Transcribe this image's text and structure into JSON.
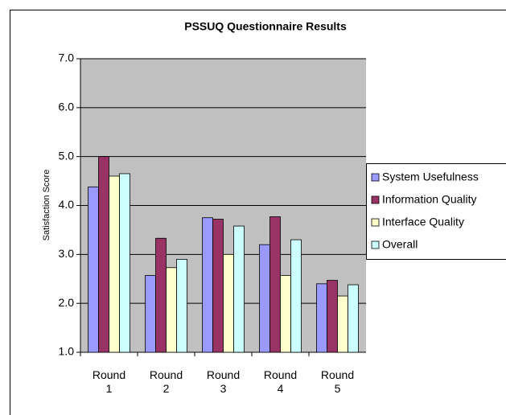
{
  "chart_data": {
    "type": "bar",
    "title": "PSSUQ Questionnaire Results",
    "y_label": "Satisfaction Score",
    "categories": [
      "Round 1",
      "Round 2",
      "Round 3",
      "Round 4",
      "Round 5"
    ],
    "series": [
      {
        "name": "System Usefulness",
        "color": "#9999ff",
        "values": [
          4.38,
          2.57,
          3.75,
          3.2,
          2.4
        ]
      },
      {
        "name": "Information Quality",
        "color": "#993366",
        "values": [
          5.0,
          3.33,
          3.72,
          3.77,
          2.47
        ]
      },
      {
        "name": "Interface Quality",
        "color": "#ffffcc",
        "values": [
          4.6,
          2.73,
          3.0,
          2.57,
          2.15
        ]
      },
      {
        "name": "Overall",
        "color": "#ccffff",
        "values": [
          4.65,
          2.9,
          3.58,
          3.3,
          2.38
        ]
      }
    ],
    "ylim": [
      1,
      7
    ],
    "yticks": [
      {
        "value": 1,
        "label": "1.0"
      },
      {
        "value": 2,
        "label": "2.0"
      },
      {
        "value": 3,
        "label": "3.0"
      },
      {
        "value": 4,
        "label": "4.0"
      },
      {
        "value": 5,
        "label": "5.0"
      },
      {
        "value": 6,
        "label": "6.0"
      },
      {
        "value": 7,
        "label": "7.0"
      }
    ],
    "grid": true,
    "legend": "right"
  }
}
